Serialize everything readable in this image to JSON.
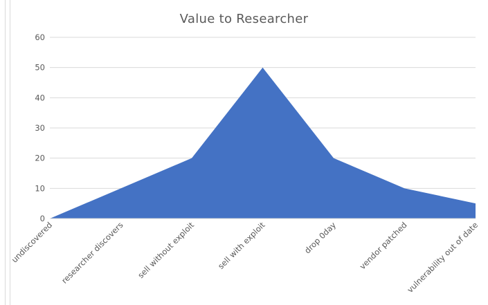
{
  "chart_data": {
    "type": "area",
    "title": "Value to Researcher",
    "xlabel": "",
    "ylabel": "",
    "categories": [
      "undiscovered",
      "researcher discovers",
      "sell without exploit",
      "sell with exploit",
      "drop 0day",
      "vendor patched",
      "vulnerability out of date"
    ],
    "values": [
      0,
      10,
      20,
      50,
      20,
      10,
      5
    ],
    "ylim": [
      0,
      60
    ],
    "yticks": [
      0,
      10,
      20,
      30,
      40,
      50,
      60
    ],
    "grid": true,
    "legend": "none",
    "series_color": "#4472c4"
  }
}
